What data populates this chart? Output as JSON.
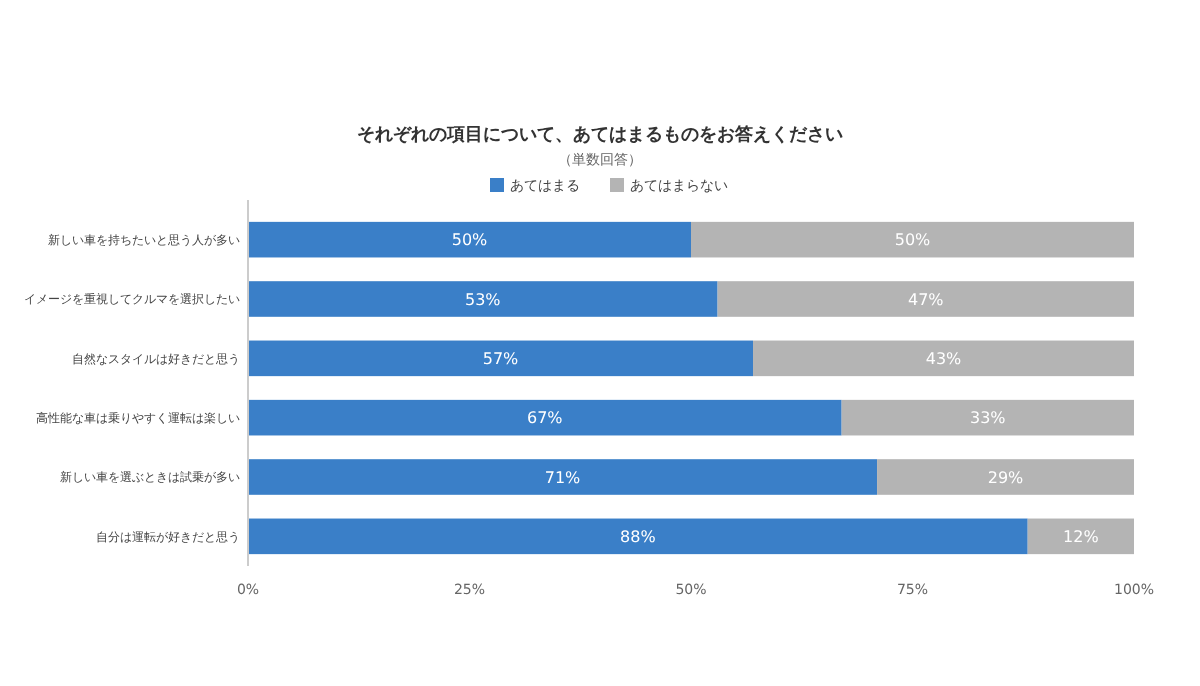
{
  "chart_data": {
    "type": "bar",
    "orientation": "horizontal",
    "stacked": true,
    "title": "それぞれの項目について、あてはまるものをお答えください",
    "subtitle": "（単数回答）",
    "categories": [
      "新しい車を持ちたいと思う人が多い",
      "イメージを重視してクルマを選択したい",
      "自然なスタイルは好きだと思う",
      "高性能な車は乗りやすく運転は楽しい",
      "新しい車を選ぶときは試乗が多い",
      "自分は運転が好きだと思う"
    ],
    "series": [
      {
        "name": "あてはまる",
        "color": "#3a7fc8",
        "values": [
          50,
          53,
          57,
          67,
          71,
          88
        ],
        "value_labels": [
          "50%",
          "53%",
          "57%",
          "67%",
          "71%",
          "88%"
        ]
      },
      {
        "name": "あてはまらない",
        "color": "#b4b4b4",
        "values": [
          50,
          47,
          43,
          33,
          29,
          12
        ],
        "value_labels": [
          "50%",
          "47%",
          "43%",
          "33%",
          "29%",
          "12%"
        ]
      }
    ],
    "xlim": [
      0,
      100
    ],
    "xticks": [
      {
        "value": 0,
        "label": "0%"
      },
      {
        "value": 25,
        "label": "25%"
      },
      {
        "value": 50,
        "label": "50%"
      },
      {
        "value": 75,
        "label": "75%"
      },
      {
        "value": 100,
        "label": "100%"
      }
    ],
    "legend": "top",
    "grid": false
  }
}
